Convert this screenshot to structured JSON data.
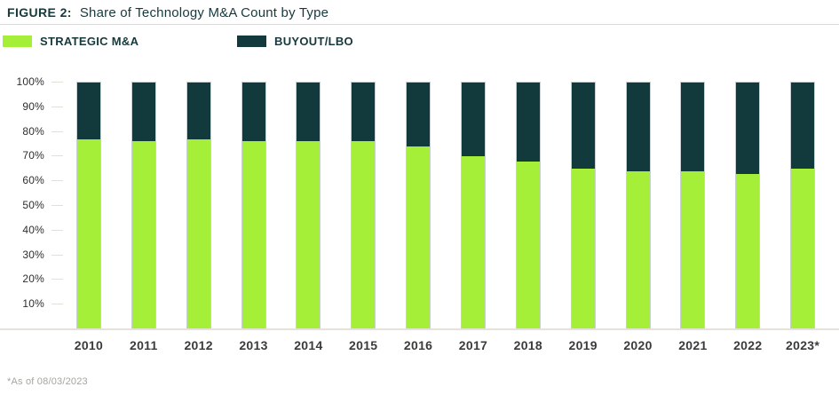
{
  "header": {
    "figure_label": "FIGURE 2:",
    "title": "Share of Technology M&A Count by Type"
  },
  "legend": {
    "items": [
      {
        "label": "STRATEGIC M&A",
        "color": "#a5ef38"
      },
      {
        "label": "BUYOUT/LBO",
        "color": "#123a3d"
      }
    ]
  },
  "footnote": "*As of 08/03/2023",
  "colors": {
    "strategic_green": "#a5ef38",
    "buyout_dark_teal": "#123a3d",
    "title_text": "#16393c",
    "axis_text": "#2e2e2e",
    "gridline_gray": "#e3e0d8",
    "baseline_gray": "#e6e2d9"
  },
  "chart_data": {
    "type": "bar",
    "stacked": true,
    "title": "Share of Technology M&A Count by Type",
    "xlabel": "",
    "ylabel": "",
    "unit": "%",
    "ylim": [
      0,
      100
    ],
    "grid": false,
    "legend_position": "top-left",
    "categories": [
      "2010",
      "2011",
      "2012",
      "2013",
      "2014",
      "2015",
      "2016",
      "2017",
      "2018",
      "2019",
      "2020",
      "2021",
      "2022",
      "2023*"
    ],
    "series": [
      {
        "name": "Strategic M&A",
        "color": "#a5ef38",
        "values": [
          77,
          76,
          77,
          76,
          76,
          76,
          74,
          70,
          68,
          65,
          64,
          64,
          63,
          65
        ]
      },
      {
        "name": "Buyout/LBO",
        "color": "#123a3d",
        "values": [
          23,
          24,
          23,
          24,
          24,
          24,
          26,
          30,
          32,
          35,
          36,
          36,
          37,
          35
        ]
      }
    ],
    "yticks": [
      "100%",
      "90%",
      "80%",
      "70%",
      "60%",
      "50%",
      "40%",
      "30%",
      "20%",
      "10%"
    ]
  }
}
